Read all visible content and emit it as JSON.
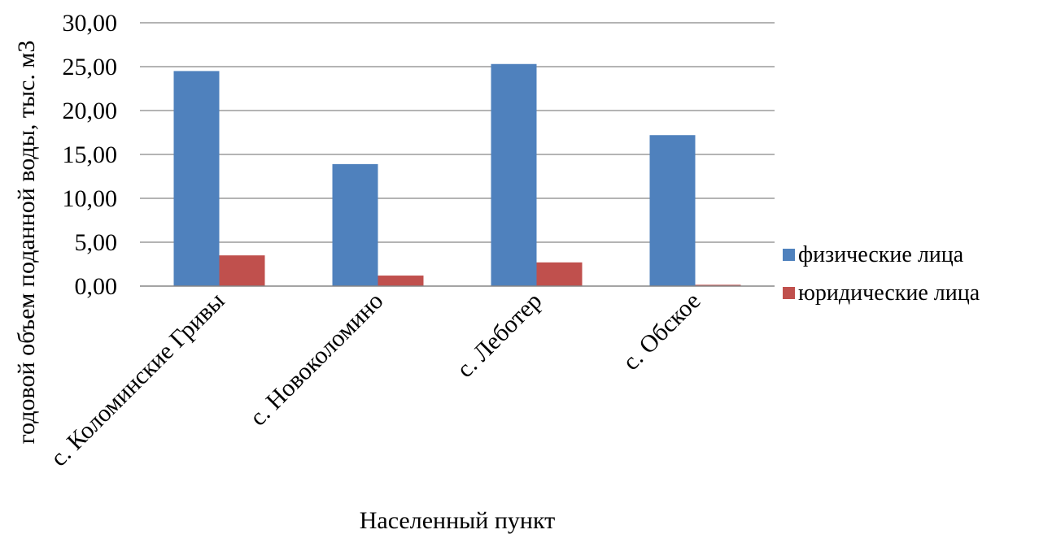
{
  "chart_data": {
    "type": "bar",
    "title": "",
    "xlabel": "Населенный пункт",
    "ylabel": "годовой объем поданной воды, тыс. м3",
    "categories": [
      "с. Коломинские Гривы",
      "с. Новоколомино",
      "с. Леботер",
      "с. Обское"
    ],
    "series": [
      {
        "name": "физические лица",
        "values": [
          24.5,
          13.9,
          25.3,
          17.2
        ],
        "color": "#4F81BD"
      },
      {
        "name": "юридические лица",
        "values": [
          3.5,
          1.2,
          2.7,
          0.15
        ],
        "color": "#C0504D"
      }
    ],
    "ylim": [
      0,
      30
    ],
    "yticks": [
      "0,00",
      "5,00",
      "10,00",
      "15,00",
      "20,00",
      "25,00",
      "30,00"
    ],
    "grid": true,
    "legend": "right"
  }
}
